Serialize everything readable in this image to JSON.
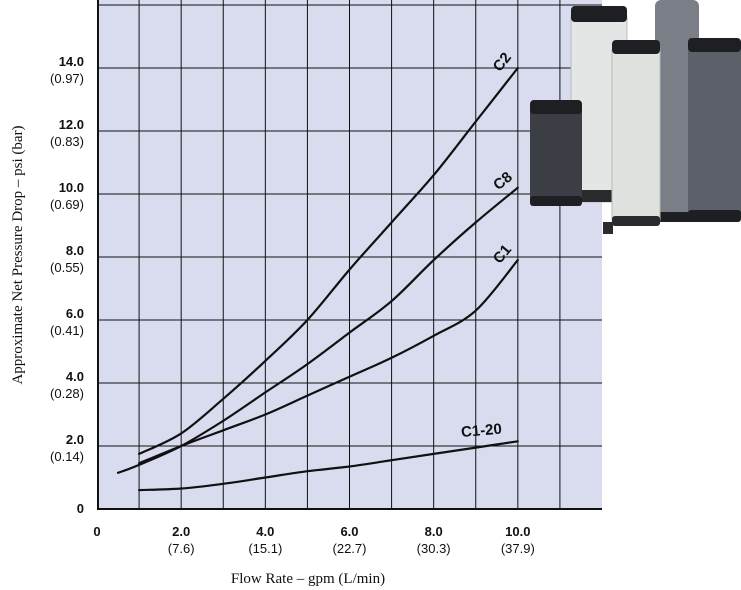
{
  "chart_data": {
    "type": "line",
    "xlabel": "Flow Rate – gpm (L/min)",
    "ylabel": "Approximate Net Pressure Drop – psi (bar)",
    "xlim": [
      0,
      12
    ],
    "ylim": [
      0,
      16
    ],
    "grid": true,
    "x_ticks": [
      {
        "value": 0,
        "label": "0",
        "sub": ""
      },
      {
        "value": 2,
        "label": "2.0",
        "sub": "(7.6)"
      },
      {
        "value": 4,
        "label": "4.0",
        "sub": "(15.1)"
      },
      {
        "value": 6,
        "label": "6.0",
        "sub": "(22.7)"
      },
      {
        "value": 8,
        "label": "8.0",
        "sub": "(30.3)"
      },
      {
        "value": 10,
        "label": "10.0",
        "sub": "(37.9)"
      }
    ],
    "y_ticks": [
      {
        "value": 0,
        "label": "0",
        "sub": ""
      },
      {
        "value": 2,
        "label": "2.0",
        "sub": "(0.14)"
      },
      {
        "value": 4,
        "label": "4.0",
        "sub": "(0.28)"
      },
      {
        "value": 6,
        "label": "6.0",
        "sub": "(0.41)"
      },
      {
        "value": 8,
        "label": "8.0",
        "sub": "(0.55)"
      },
      {
        "value": 10,
        "label": "10.0",
        "sub": "(0.69)"
      },
      {
        "value": 12,
        "label": "12.0",
        "sub": "(0.83)"
      },
      {
        "value": 14,
        "label": "14.0",
        "sub": "(0.97)"
      }
    ],
    "series": [
      {
        "name": "C2",
        "x": [
          1.0,
          2.0,
          3.0,
          4.0,
          5.0,
          6.0,
          7.0,
          8.0,
          9.0,
          10.0
        ],
        "values": [
          1.75,
          2.4,
          3.5,
          4.7,
          6.0,
          7.6,
          9.1,
          10.6,
          12.3,
          14.0
        ]
      },
      {
        "name": "C8",
        "x": [
          0.5,
          1.0,
          2.0,
          3.0,
          4.0,
          5.0,
          6.0,
          7.0,
          8.0,
          9.0,
          10.0
        ],
        "values": [
          1.15,
          1.4,
          2.0,
          2.8,
          3.7,
          4.6,
          5.6,
          6.6,
          7.9,
          9.1,
          10.2
        ]
      },
      {
        "name": "C1",
        "x": [
          1.0,
          2.0,
          3.0,
          4.0,
          5.0,
          6.0,
          7.0,
          8.0,
          9.0,
          10.0
        ],
        "values": [
          1.45,
          2.0,
          2.5,
          3.0,
          3.6,
          4.2,
          4.8,
          5.5,
          6.3,
          7.9
        ]
      },
      {
        "name": "C1-20",
        "x": [
          1.0,
          2.0,
          3.0,
          4.0,
          5.0,
          6.0,
          7.0,
          8.0,
          9.0,
          10.0
        ],
        "values": [
          0.6,
          0.65,
          0.8,
          1.0,
          1.2,
          1.35,
          1.55,
          1.75,
          1.95,
          2.15
        ]
      }
    ]
  },
  "cartridge_colors": {
    "plot_background": "#d9dcef",
    "carbon_dark": "#3b3f45",
    "carbon_mid": "#5c6068",
    "pleated_white": "#e8ebe9",
    "cap_black": "#1e1f22"
  }
}
